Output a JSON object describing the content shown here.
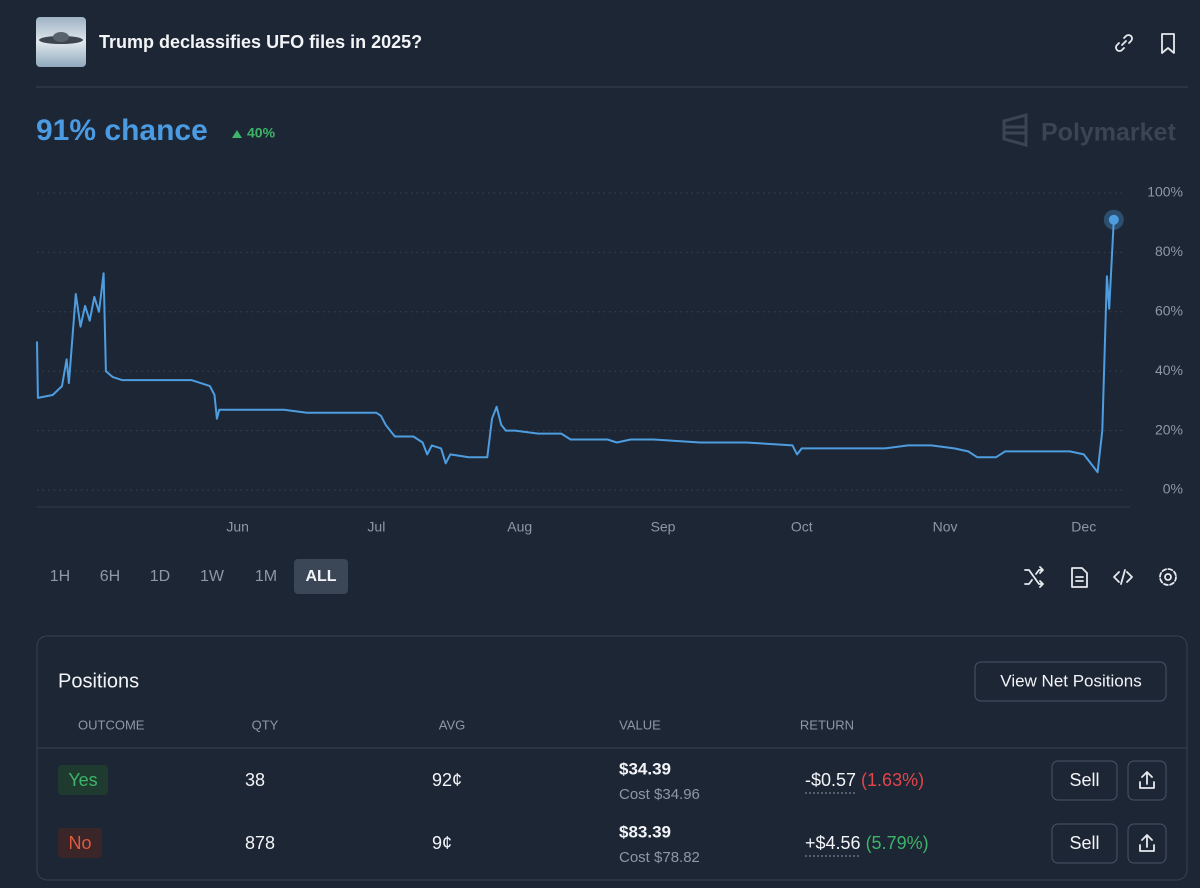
{
  "header": {
    "title": "Trump declassifies UFO files in 2025?",
    "chance": "91% chance",
    "change": "40%",
    "brand": "Polymarket"
  },
  "chart_data": {
    "type": "line",
    "color": "#4d9de0",
    "grid": true,
    "x": [
      -43.4,
      -43.2,
      -40,
      -38,
      -37,
      -36.5,
      -35,
      -34,
      -33,
      -32,
      -31,
      -30,
      -29,
      -28.5,
      -27,
      -25,
      -10,
      -8,
      -6,
      -5,
      -4.5,
      -4,
      -2,
      10,
      15,
      30,
      31,
      32,
      33,
      34,
      38,
      40,
      41,
      42,
      44,
      45,
      46,
      50,
      54,
      55,
      56,
      57,
      58,
      60,
      65,
      70,
      72,
      80,
      82,
      85,
      90,
      100,
      110,
      120,
      121,
      122,
      130,
      140,
      145,
      150,
      155,
      158,
      160,
      164,
      166,
      175,
      180,
      183,
      185,
      186,
      187,
      188,
      188.5,
      189.5
    ],
    "values": [
      50,
      31,
      32,
      35,
      44,
      36,
      66,
      55,
      62,
      57,
      65,
      60,
      73,
      40,
      38,
      37,
      37,
      36,
      35,
      32,
      24,
      27,
      27,
      27,
      26,
      26,
      25,
      22,
      20,
      18,
      18,
      16,
      12,
      15,
      14,
      9,
      12,
      11,
      11,
      24,
      28,
      22,
      20,
      20,
      19,
      19,
      17,
      17,
      16,
      17,
      17,
      16,
      16,
      15,
      12,
      14,
      14,
      14,
      15,
      15,
      14,
      13,
      11,
      11,
      13,
      13,
      13,
      12,
      8,
      6,
      20,
      72,
      61,
      91
    ],
    "xlim": [
      -43.4,
      193
    ],
    "xticks": [
      {
        "value": 0,
        "label": "Jun"
      },
      {
        "value": 30,
        "label": "Jul"
      },
      {
        "value": 61,
        "label": "Aug"
      },
      {
        "value": 92,
        "label": "Sep"
      },
      {
        "value": 122,
        "label": "Oct"
      },
      {
        "value": 153,
        "label": "Nov"
      },
      {
        "value": 183,
        "label": "Dec"
      }
    ],
    "ylim": [
      0,
      100
    ],
    "yticks": [
      {
        "value": 0,
        "label": "0%"
      },
      {
        "value": 20,
        "label": "20%"
      },
      {
        "value": 40,
        "label": "40%"
      },
      {
        "value": 60,
        "label": "60%"
      },
      {
        "value": 80,
        "label": "80%"
      },
      {
        "value": 100,
        "label": "100%"
      }
    ]
  },
  "ranges": {
    "options": [
      "1H",
      "6H",
      "1D",
      "1W",
      "1M",
      "ALL"
    ],
    "active": "ALL"
  },
  "positions": {
    "title": "Positions",
    "button": "View Net Positions",
    "columns": [
      "OUTCOME",
      "QTY",
      "AVG",
      "VALUE",
      "RETURN"
    ],
    "rows": [
      {
        "outcome": "Yes",
        "qty": "38",
        "avg": "92¢",
        "value": "$34.39",
        "cost": "Cost $34.96",
        "return": "-$0.57",
        "return_pct": "(1.63%)",
        "sell": "Sell"
      },
      {
        "outcome": "No",
        "qty": "878",
        "avg": "9¢",
        "value": "$83.39",
        "cost": "Cost $78.82",
        "return": "+$4.56",
        "return_pct": "(5.79%)",
        "sell": "Sell"
      }
    ]
  }
}
